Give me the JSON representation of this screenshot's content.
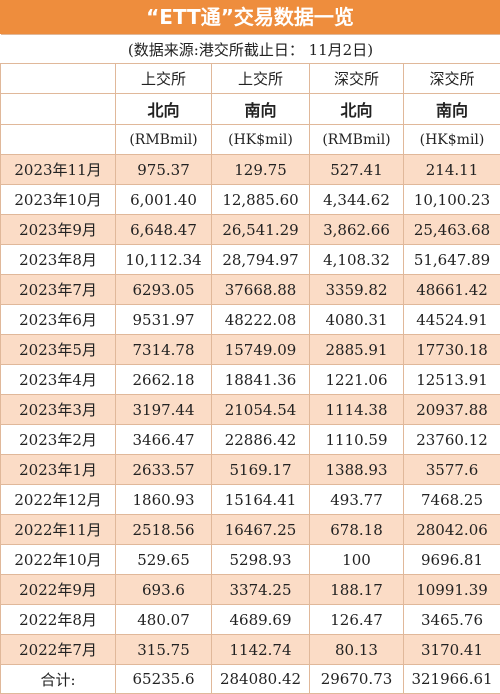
{
  "title": "“ETT通”交易数据一览",
  "subtitle": "(数据来源:港交所截止日：  11月2日)",
  "headers": {
    "exchange": [
      "上交所",
      "上交所",
      "深交所",
      "深交所"
    ],
    "direction": [
      "北向",
      "南向",
      "北向",
      "南向"
    ],
    "unit": [
      "(RMBmil)",
      "(HK$mil)",
      "(RMBmil)",
      "(HK$mil)"
    ]
  },
  "rows": [
    {
      "month": "2023年11月",
      "v": [
        "975.37",
        "129.75",
        "527.41",
        "214.11"
      ]
    },
    {
      "month": "2023年10月",
      "v": [
        "6,001.40",
        "12,885.60",
        "4,344.62",
        "10,100.23"
      ]
    },
    {
      "month": "2023年9月",
      "v": [
        "6,648.47",
        "26,541.29",
        "3,862.66",
        "25,463.68"
      ]
    },
    {
      "month": "2023年8月",
      "v": [
        "10,112.34",
        "28,794.97",
        "4,108.32",
        "51,647.89"
      ]
    },
    {
      "month": "2023年7月",
      "v": [
        "6293.05",
        "37668.88",
        "3359.82",
        "48661.42"
      ]
    },
    {
      "month": "2023年6月",
      "v": [
        "9531.97",
        "48222.08",
        "4080.31",
        "44524.91"
      ]
    },
    {
      "month": "2023年5月",
      "v": [
        "7314.78",
        "15749.09",
        "2885.91",
        "17730.18"
      ]
    },
    {
      "month": "2023年4月",
      "v": [
        "2662.18",
        "18841.36",
        "1221.06",
        "12513.91"
      ]
    },
    {
      "month": "2023年3月",
      "v": [
        "3197.44",
        "21054.54",
        "1114.38",
        "20937.88"
      ]
    },
    {
      "month": "2023年2月",
      "v": [
        "3466.47",
        "22886.42",
        "1110.59",
        "23760.12"
      ]
    },
    {
      "month": "2023年1月",
      "v": [
        "2633.57",
        "5169.17",
        "1388.93",
        "3577.6"
      ]
    },
    {
      "month": "2022年12月",
      "v": [
        "1860.93",
        "15164.41",
        "493.77",
        "7468.25"
      ]
    },
    {
      "month": "2022年11月",
      "v": [
        "2518.56",
        "16467.25",
        "678.18",
        "28042.06"
      ]
    },
    {
      "month": "2022年10月",
      "v": [
        "529.65",
        "5298.93",
        "100",
        "9696.81"
      ]
    },
    {
      "month": "2022年9月",
      "v": [
        "693.6",
        "3374.25",
        "188.17",
        "10991.39"
      ]
    },
    {
      "month": "2022年8月",
      "v": [
        "480.07",
        "4689.69",
        "126.47",
        "3465.76"
      ]
    },
    {
      "month": "2022年7月",
      "v": [
        "315.75",
        "1142.74",
        "80.13",
        "3170.41"
      ]
    }
  ],
  "total": {
    "label": "合计:",
    "v": [
      "65235.6",
      "284080.42",
      "29670.73",
      "321966.61"
    ]
  }
}
